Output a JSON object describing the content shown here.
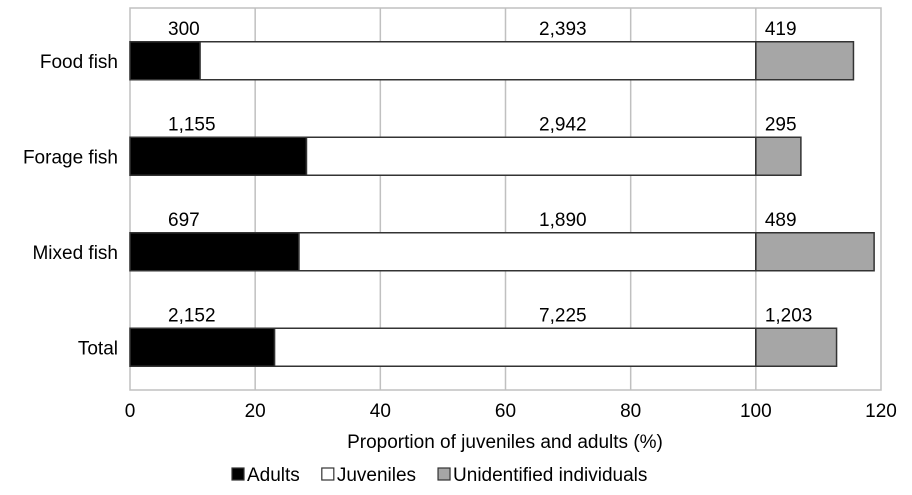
{
  "chart_data": {
    "type": "bar",
    "orientation": "horizontal",
    "stacked": true,
    "categories": [
      "Food fish",
      "Forage fish",
      "Mixed fish",
      "Total"
    ],
    "series": [
      {
        "name": "Adults",
        "color": "#000000",
        "values": [
          11.2,
          28.2,
          27.0,
          23.1
        ],
        "labels": [
          "300",
          "1,155",
          "697",
          "2,152"
        ]
      },
      {
        "name": "Juveniles",
        "color": "#ffffff",
        "values": [
          88.8,
          71.8,
          73.0,
          76.9
        ],
        "labels": [
          "2,393",
          "2,942",
          "1,890",
          "7,225"
        ]
      },
      {
        "name": "Unidentified individuals",
        "color": "#a6a6a6",
        "values": [
          15.6,
          7.2,
          18.9,
          12.9
        ],
        "labels": [
          "419",
          "295",
          "489",
          "1,203"
        ]
      }
    ],
    "xlabel": "Proportion of juveniles and adults (%)",
    "xlim": [
      0,
      120
    ],
    "xticks": [
      0,
      20,
      40,
      60,
      80,
      100,
      120
    ],
    "xtick_labels": [
      "0",
      "20",
      "40",
      "60",
      "80",
      "100",
      "120"
    ],
    "grid": true,
    "legend_position": "bottom"
  }
}
